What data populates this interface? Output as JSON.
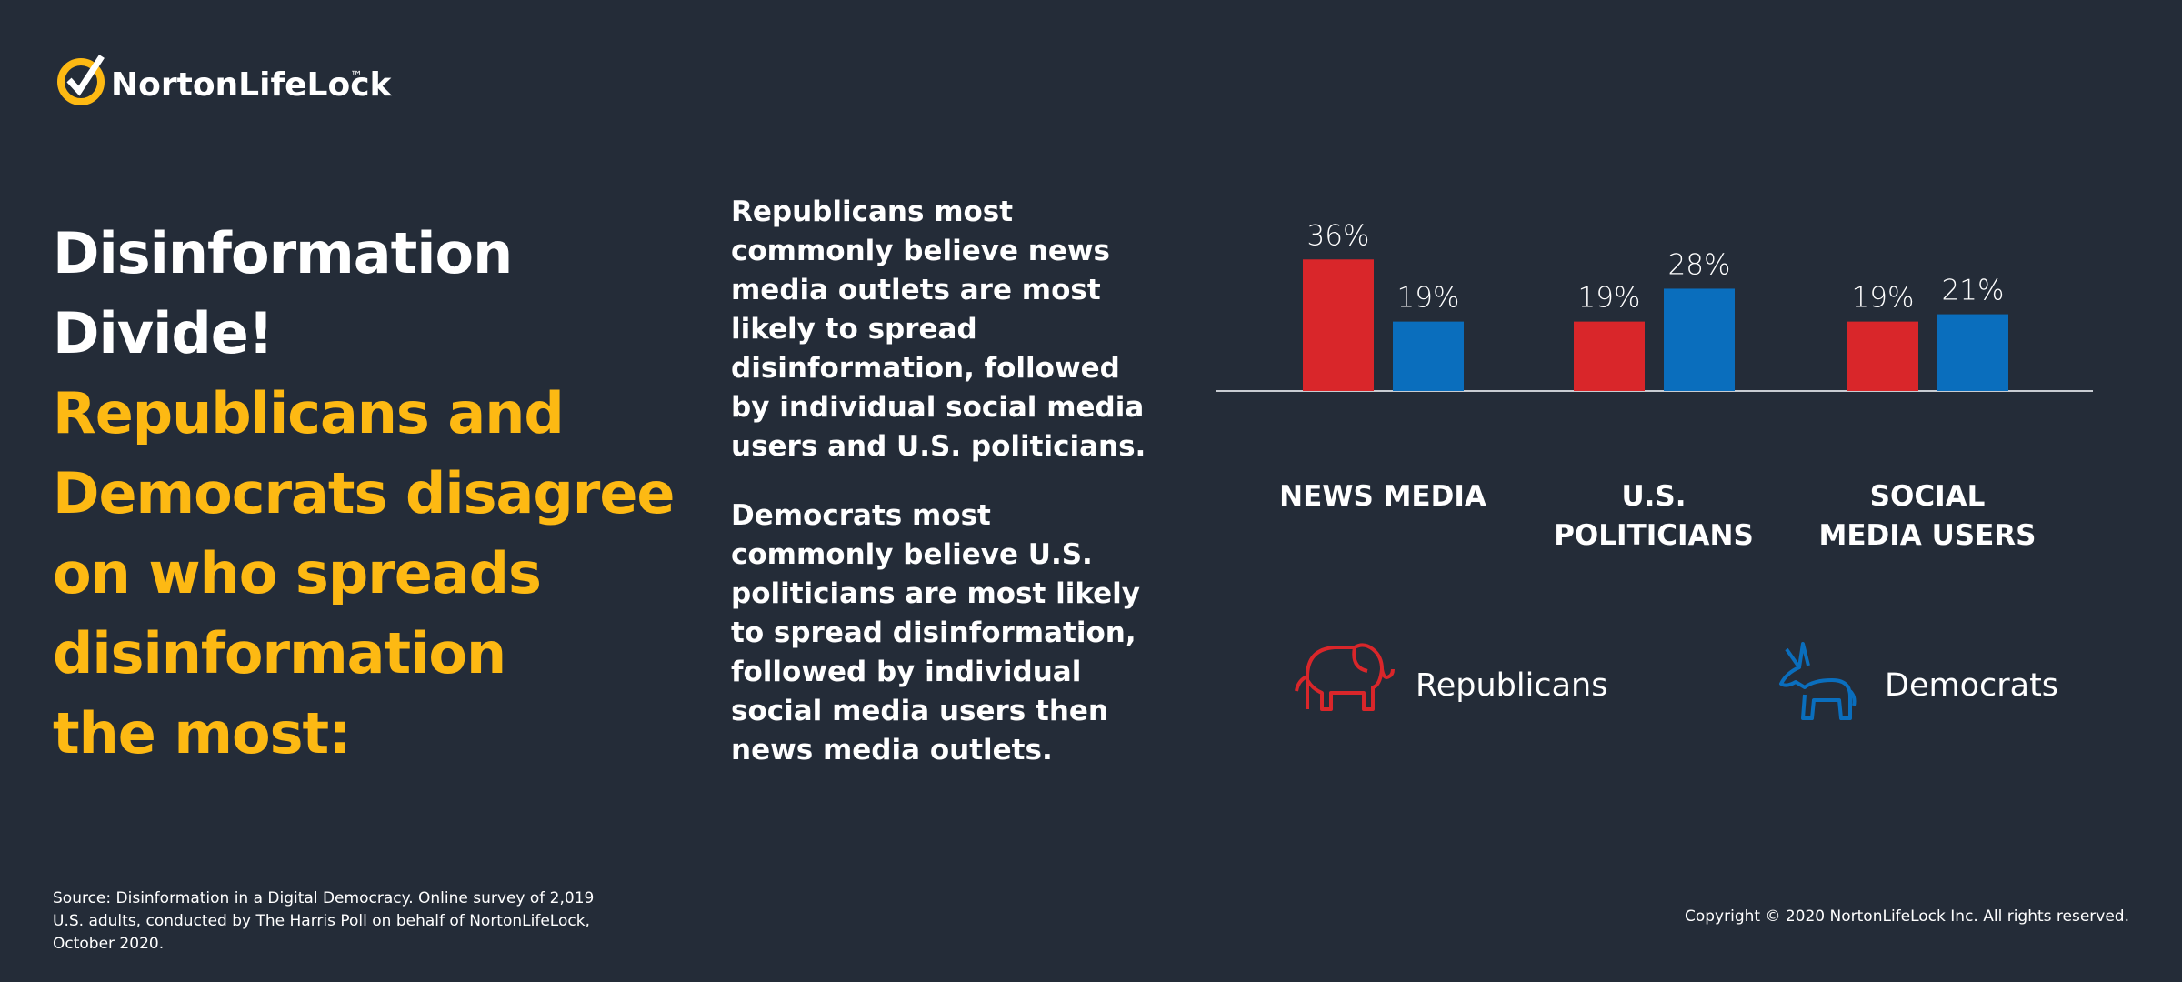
{
  "logo": {
    "text": "NortonLifeLock",
    "trademark": "™"
  },
  "headline": {
    "title_lines": [
      "Disinformation",
      "Divide!"
    ],
    "subtitle_lines": [
      "Republicans and",
      "Democrats disagree",
      "on who spreads",
      "disinformation",
      "the most:"
    ]
  },
  "paragraphs": [
    "Republicans most commonly believe news media outlets are most likely to spread disinformation, followed by individual social media users and U.S. politicians.",
    "Democrats most commonly believe U.S. politicians are most likely to spread disinformation, followed by individual social media users then news media outlets."
  ],
  "chart_data": {
    "type": "bar",
    "categories": [
      "NEWS MEDIA",
      "U.S. POLITICIANS",
      "SOCIAL MEDIA USERS"
    ],
    "series": [
      {
        "name": "Republicans",
        "color": "#d9262a",
        "values": [
          36,
          19,
          19
        ],
        "value_labels": [
          "36%",
          "19%",
          "19%"
        ]
      },
      {
        "name": "Democrats",
        "color": "#0a6ebd",
        "values": [
          19,
          28,
          21
        ],
        "value_labels": [
          "19%",
          "28%",
          "21%"
        ]
      }
    ]
  },
  "footer": {
    "source": "Source: Disinformation in a Digital Democracy. Online survey of 2,019 U.S. adults, conducted by The Harris Poll on behalf of NortonLifeLock, October 2020.",
    "copyright": "Copyright © 2020 NortonLifeLock Inc. All rights reserved."
  }
}
